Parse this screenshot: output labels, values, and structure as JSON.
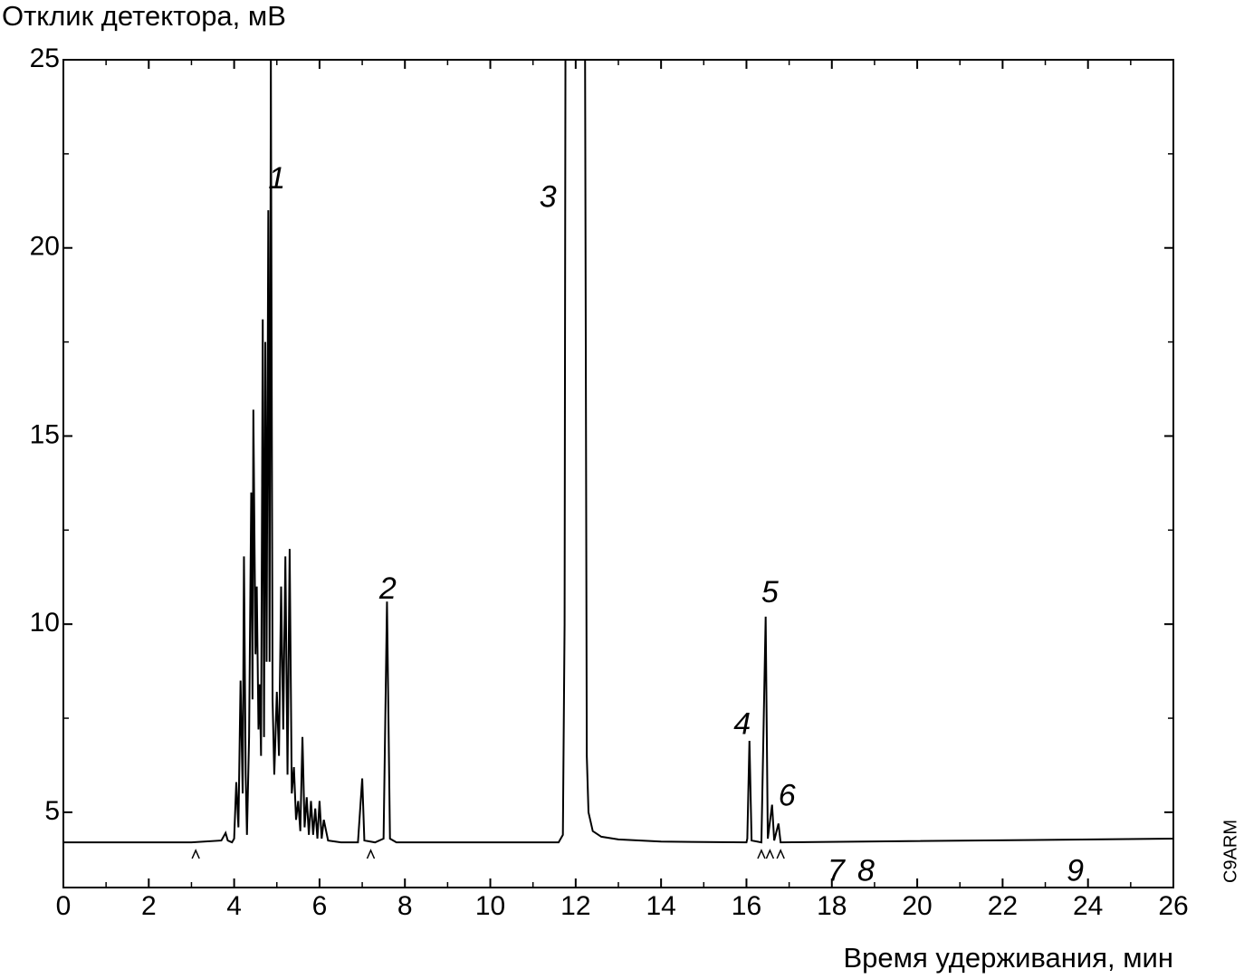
{
  "chart_data": {
    "type": "line",
    "title": "Отклик детектора, мВ",
    "xlabel": "Время удерживания, мин",
    "side_label": "C9ARM",
    "color": "#000000",
    "x": [
      0,
      3.0,
      3.7,
      3.8,
      3.85,
      3.95,
      4.0,
      4.05,
      4.1,
      4.15,
      4.2,
      4.23,
      4.27,
      4.3,
      4.35,
      4.4,
      4.43,
      4.45,
      4.5,
      4.53,
      4.57,
      4.6,
      4.63,
      4.67,
      4.7,
      4.73,
      4.76,
      4.8,
      4.83,
      4.86,
      4.9,
      4.94,
      5.0,
      5.05,
      5.1,
      5.15,
      5.2,
      5.25,
      5.3,
      5.35,
      5.4,
      5.45,
      5.5,
      5.55,
      5.6,
      5.65,
      5.7,
      5.75,
      5.8,
      5.85,
      5.9,
      5.95,
      6.0,
      6.05,
      6.1,
      6.2,
      6.5,
      6.9,
      7.0,
      7.05,
      7.3,
      7.5,
      7.58,
      7.65,
      7.8,
      11.6,
      11.7,
      11.74,
      11.76,
      12.0,
      12.22,
      12.26,
      12.3,
      12.4,
      12.6,
      13.0,
      14.0,
      16.0,
      16.02,
      16.07,
      16.12,
      16.35,
      16.45,
      16.5,
      16.6,
      16.65,
      16.75,
      16.8,
      26.0
    ],
    "values": [
      4.2,
      4.2,
      4.25,
      4.45,
      4.25,
      4.2,
      4.3,
      5.8,
      4.6,
      8.5,
      5.5,
      11.8,
      6.0,
      4.4,
      7.0,
      13.5,
      8.0,
      15.7,
      9.2,
      11.0,
      7.2,
      8.4,
      6.5,
      18.1,
      7.0,
      17.5,
      9.0,
      21.0,
      9.0,
      25,
      8.0,
      6.0,
      8.2,
      6.5,
      11.0,
      7.2,
      11.8,
      6.0,
      12.0,
      5.5,
      6.2,
      4.8,
      5.3,
      4.5,
      7.0,
      4.6,
      5.4,
      4.4,
      5.3,
      4.4,
      5.1,
      4.3,
      5.3,
      4.3,
      4.8,
      4.25,
      4.2,
      4.2,
      5.9,
      4.25,
      4.2,
      4.3,
      10.6,
      4.3,
      4.2,
      4.2,
      4.4,
      10.0,
      25,
      null,
      25,
      6.5,
      5.0,
      4.5,
      4.35,
      4.28,
      4.22,
      4.2,
      4.3,
      6.9,
      4.25,
      4.2,
      10.2,
      4.3,
      5.2,
      4.25,
      4.7,
      4.2,
      4.3
    ],
    "xlim": [
      0,
      26
    ],
    "ylim": [
      3,
      25
    ],
    "xticks": [
      0,
      2,
      4,
      6,
      8,
      10,
      12,
      14,
      16,
      18,
      20,
      22,
      24,
      26
    ],
    "yticks": [
      5,
      10,
      15,
      20,
      25
    ],
    "xminorticks": [
      1,
      3,
      5,
      7,
      9,
      11,
      13,
      15,
      17,
      19,
      21,
      23,
      25
    ],
    "yminorticks": [
      7.5,
      12.5,
      17.5,
      22.5
    ],
    "integration_marks_x": [
      3.1,
      7.2,
      16.35,
      16.55,
      16.8
    ],
    "annotations": [
      {
        "text": "1",
        "x": 5.0,
        "y": 21.8
      },
      {
        "text": "2",
        "x": 7.6,
        "y": 10.9
      },
      {
        "text": "3",
        "x": 11.35,
        "y": 21.3
      },
      {
        "text": "4",
        "x": 15.9,
        "y": 7.3
      },
      {
        "text": "5",
        "x": 16.55,
        "y": 10.8
      },
      {
        "text": "6",
        "x": 16.95,
        "y": 5.4
      },
      {
        "text": "7",
        "x": 18.1,
        "y": 3.4
      },
      {
        "text": "8",
        "x": 18.8,
        "y": 3.4
      },
      {
        "text": "9",
        "x": 23.7,
        "y": 3.4
      }
    ]
  }
}
